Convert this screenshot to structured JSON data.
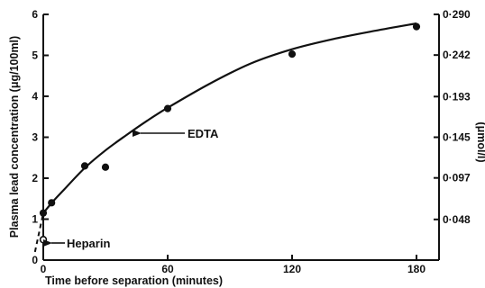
{
  "chart_data": {
    "type": "scatter",
    "title": "",
    "xlabel": "Time before separation (minutes)",
    "ylabel": "Plasma lead concentration (μg/100ml)",
    "ylabel_right": "(μmol/l)",
    "xlim": [
      0,
      180
    ],
    "ylim": [
      0,
      6
    ],
    "x_ticks": [
      "0",
      "60",
      "120",
      "180"
    ],
    "y_ticks": [
      "0",
      "1",
      "2",
      "3",
      "4",
      "5",
      "6"
    ],
    "y_right_ticks": [
      {
        "value": 0.048,
        "label": "0·048"
      },
      {
        "value": 0.097,
        "label": "0·097"
      },
      {
        "value": 0.145,
        "label": "0·145"
      },
      {
        "value": 0.193,
        "label": "0·193"
      },
      {
        "value": 0.242,
        "label": "0·242"
      },
      {
        "value": 0.29,
        "label": "0·290"
      }
    ],
    "y_right_factor": 0.04833,
    "series": [
      {
        "name": "EDTA",
        "marker": "filled-circle",
        "x": [
          0,
          4,
          20,
          30,
          60,
          120,
          180
        ],
        "y": [
          1.15,
          1.4,
          2.3,
          2.27,
          3.7,
          5.03,
          5.7
        ]
      },
      {
        "name": "Heparin",
        "marker": "open-circle",
        "x": [
          0
        ],
        "y": [
          0.5
        ]
      }
    ],
    "fit_curve": {
      "x": [
        0,
        5,
        10,
        20,
        30,
        40,
        50,
        60,
        80,
        100,
        120,
        140,
        160,
        180
      ],
      "y": [
        1.15,
        1.45,
        1.72,
        2.25,
        2.68,
        3.05,
        3.4,
        3.72,
        4.3,
        4.8,
        5.15,
        5.4,
        5.6,
        5.78
      ]
    },
    "extrapolation": {
      "x": [
        -4,
        0
      ],
      "y": [
        0.2,
        1.15
      ]
    },
    "annotations": [
      {
        "text": "EDTA",
        "x": 50,
        "y": 2.9
      },
      {
        "text": "Heparin",
        "x": 0,
        "y": 0.5
      }
    ],
    "grid": false,
    "legend": "none"
  }
}
